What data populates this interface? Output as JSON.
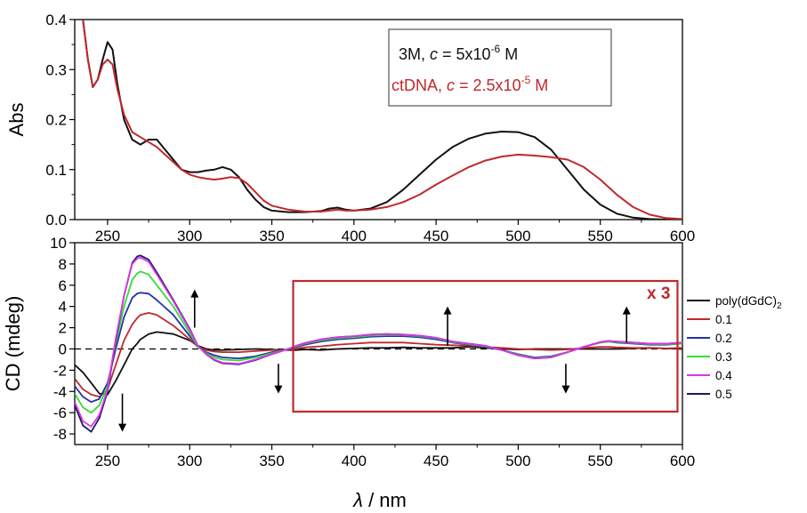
{
  "colors": {
    "black": "#111111",
    "red": "#c0282d",
    "blue": "#2233aa",
    "green": "#33dd33",
    "magenta": "#dd33ee",
    "navy": "#1a1a5e",
    "box": "#c0282d"
  },
  "chart_data": [
    {
      "type": "line",
      "id": "absorbance",
      "xlabel": "",
      "ylabel": "Abs",
      "xlim": [
        230,
        600
      ],
      "ylim": [
        0,
        0.4
      ],
      "xticks": [
        250,
        300,
        350,
        400,
        450,
        500,
        550,
        600
      ],
      "yticks": [
        0.0,
        0.1,
        0.2,
        0.3,
        0.4
      ],
      "legend": {
        "placement": "top-right",
        "entries": [
          {
            "parts": [
              "3M, ",
              "c",
              " = 5x10",
              "-6",
              " M"
            ],
            "color": "#111111"
          },
          {
            "parts": [
              "ctDNA, ",
              "c",
              " = 2.5x10",
              "-5",
              " M"
            ],
            "color": "#c0282d"
          }
        ]
      },
      "series": [
        {
          "color": "#111111",
          "x": [
            235,
            238,
            241,
            244,
            247,
            250,
            253,
            256,
            260,
            265,
            270,
            275,
            280,
            285,
            290,
            295,
            300,
            305,
            310,
            315,
            320,
            325,
            330,
            335,
            340,
            345,
            350,
            360,
            370,
            380,
            385,
            390,
            395,
            400,
            410,
            420,
            430,
            440,
            450,
            460,
            470,
            480,
            490,
            500,
            510,
            520,
            530,
            540,
            550,
            560,
            570,
            580,
            590,
            600
          ],
          "y": [
            0.4,
            0.32,
            0.265,
            0.28,
            0.32,
            0.355,
            0.34,
            0.27,
            0.2,
            0.16,
            0.15,
            0.16,
            0.16,
            0.14,
            0.12,
            0.1,
            0.095,
            0.095,
            0.098,
            0.1,
            0.105,
            0.1,
            0.085,
            0.06,
            0.04,
            0.025,
            0.018,
            0.015,
            0.015,
            0.017,
            0.022,
            0.024,
            0.02,
            0.018,
            0.022,
            0.035,
            0.06,
            0.09,
            0.12,
            0.145,
            0.162,
            0.172,
            0.176,
            0.175,
            0.165,
            0.14,
            0.1,
            0.06,
            0.03,
            0.012,
            0.004,
            0.001,
            0.0,
            0.0
          ]
        },
        {
          "color": "#c0282d",
          "x": [
            235,
            238,
            241,
            244,
            247,
            250,
            253,
            256,
            260,
            265,
            270,
            275,
            280,
            285,
            290,
            295,
            300,
            305,
            310,
            315,
            320,
            325,
            330,
            335,
            340,
            345,
            350,
            360,
            370,
            380,
            385,
            390,
            395,
            400,
            410,
            420,
            430,
            440,
            450,
            460,
            470,
            480,
            490,
            500,
            510,
            520,
            530,
            540,
            550,
            560,
            570,
            580,
            590,
            600
          ],
          "y": [
            0.4,
            0.32,
            0.265,
            0.28,
            0.31,
            0.32,
            0.31,
            0.26,
            0.21,
            0.175,
            0.165,
            0.155,
            0.145,
            0.13,
            0.115,
            0.1,
            0.09,
            0.085,
            0.082,
            0.08,
            0.082,
            0.085,
            0.083,
            0.072,
            0.055,
            0.038,
            0.028,
            0.02,
            0.016,
            0.016,
            0.018,
            0.02,
            0.018,
            0.018,
            0.02,
            0.025,
            0.035,
            0.05,
            0.07,
            0.088,
            0.105,
            0.118,
            0.126,
            0.13,
            0.128,
            0.125,
            0.12,
            0.105,
            0.08,
            0.05,
            0.025,
            0.01,
            0.003,
            0.001
          ]
        }
      ]
    },
    {
      "type": "line",
      "id": "cd",
      "xlabel_parts": [
        "λ",
        " / nm"
      ],
      "ylabel": "CD (mdeg)",
      "xlim": [
        230,
        600
      ],
      "ylim": [
        -9,
        10
      ],
      "xticks": [
        250,
        300,
        350,
        400,
        450,
        500,
        550,
        600
      ],
      "yticks": [
        -8,
        -6,
        -4,
        -2,
        0,
        2,
        4,
        6,
        8,
        10
      ],
      "zero_line": "dashed",
      "inset": {
        "label": "x 3",
        "x_from": 363,
        "x_to": 597,
        "y_from": -5.9,
        "y_to": 6.4
      },
      "legend": {
        "placement": "right",
        "entries": [
          {
            "parts": [
              "poly(dGdC)",
              "2"
            ],
            "color": "#111111"
          },
          {
            "parts": [
              "0.1"
            ],
            "color": "#c0282d"
          },
          {
            "parts": [
              "0.2"
            ],
            "color": "#2233aa"
          },
          {
            "parts": [
              "0.3"
            ],
            "color": "#33dd33"
          },
          {
            "parts": [
              "0.4"
            ],
            "color": "#dd33ee"
          },
          {
            "parts": [
              "0.5"
            ],
            "color": "#1a1a5e"
          }
        ]
      },
      "arrows": [
        {
          "x": 259,
          "y_from": -4.2,
          "y_to": -7.8
        },
        {
          "x": 303,
          "y_from": 2.0,
          "y_to": 5.6
        },
        {
          "x": 354,
          "y_from": -1.4,
          "y_to": -4.2
        },
        {
          "x": 457,
          "y_from": 0.3,
          "y_to": 4.0
        },
        {
          "x": 529,
          "y_from": -1.4,
          "y_to": -4.2
        },
        {
          "x": 566,
          "y_from": 0.6,
          "y_to": 4.0
        }
      ],
      "x": [
        230,
        235,
        240,
        245,
        250,
        255,
        260,
        265,
        268,
        270,
        275,
        280,
        290,
        300,
        305,
        310,
        315,
        320,
        330,
        340,
        350,
        360,
        365,
        370,
        380,
        390,
        400,
        410,
        420,
        430,
        440,
        450,
        460,
        470,
        480,
        490,
        500,
        510,
        520,
        530,
        540,
        550,
        555,
        560,
        570,
        580,
        590,
        600
      ],
      "series": [
        {
          "name": "poly(dGdC)2",
          "color": "#111111",
          "y": [
            -1.5,
            -2.2,
            -3.2,
            -4.2,
            -4.3,
            -3,
            -1.5,
            0,
            0.5,
            0.9,
            1.4,
            1.6,
            1.4,
            0.8,
            0.3,
            0,
            -0.1,
            -0.1,
            -0.05,
            0,
            -0.05,
            -0.1,
            -0.1,
            -0.05,
            -0.1,
            0,
            0.05,
            0.1,
            0.1,
            0.15,
            0.1,
            0.1,
            0.1,
            0.2,
            0.1,
            0,
            -0.05,
            0,
            0,
            0,
            0,
            0,
            0,
            0,
            0.05,
            0.1,
            0.05,
            0
          ]
        },
        {
          "name": "0.1",
          "color": "#c0282d",
          "y": [
            -2.8,
            -3.8,
            -4.3,
            -4.5,
            -3.8,
            -1.5,
            0.8,
            2.3,
            2.9,
            3.2,
            3.4,
            3.2,
            2.2,
            0.9,
            0.2,
            -0.1,
            -0.25,
            -0.3,
            -0.3,
            -0.2,
            -0.1,
            -0.05,
            0.05,
            0.15,
            0.25,
            0.4,
            0.5,
            0.6,
            0.6,
            0.6,
            0.5,
            0.4,
            0.35,
            0.3,
            0.2,
            0.1,
            0,
            -0.05,
            -0.1,
            -0.05,
            0.1,
            0.2,
            0.2,
            0.15,
            0.1,
            0.1,
            0.05,
            0.1
          ]
        },
        {
          "name": "0.2",
          "color": "#2233aa",
          "y": [
            -3.5,
            -4.5,
            -5,
            -4.7,
            -3.2,
            0,
            3,
            4.8,
            5.2,
            5.3,
            5.2,
            4.6,
            3.2,
            1.2,
            0.2,
            -0.3,
            -0.6,
            -0.8,
            -0.9,
            -0.7,
            -0.3,
            0,
            0.2,
            0.4,
            0.7,
            0.9,
            1,
            1.15,
            1.2,
            1.2,
            1.1,
            0.9,
            0.6,
            0.4,
            0.2,
            -0.1,
            -0.5,
            -0.8,
            -0.7,
            -0.3,
            0.2,
            0.6,
            0.7,
            0.6,
            0.5,
            0.4,
            0.4,
            0.5
          ]
        },
        {
          "name": "0.3",
          "color": "#33dd33",
          "y": [
            -4.2,
            -5.5,
            -6,
            -5.3,
            -3.5,
            0.5,
            4,
            6.5,
            7.1,
            7.3,
            7,
            6,
            4,
            1.5,
            0.2,
            -0.4,
            -0.8,
            -1,
            -1.1,
            -0.8,
            -0.4,
            0,
            0.25,
            0.5,
            0.8,
            1,
            1.1,
            1.25,
            1.3,
            1.3,
            1.2,
            1,
            0.65,
            0.45,
            0.25,
            -0.1,
            -0.55,
            -0.85,
            -0.75,
            -0.3,
            0.2,
            0.6,
            0.7,
            0.65,
            0.55,
            0.45,
            0.45,
            0.5
          ]
        },
        {
          "name": "0.4",
          "color": "#dd33ee",
          "y": [
            -5,
            -6.8,
            -7.3,
            -6.2,
            -3.8,
            1,
            5,
            8,
            8.5,
            8.6,
            8.2,
            7,
            4.5,
            1.8,
            0.3,
            -0.5,
            -1,
            -1.3,
            -1.4,
            -1,
            -0.5,
            0,
            0.3,
            0.55,
            0.9,
            1.1,
            1.2,
            1.35,
            1.4,
            1.35,
            1.25,
            1.05,
            0.7,
            0.5,
            0.3,
            -0.1,
            -0.6,
            -0.9,
            -0.8,
            -0.3,
            0.2,
            0.65,
            0.75,
            0.7,
            0.6,
            0.5,
            0.5,
            0.6
          ]
        },
        {
          "name": "0.5",
          "color": "#1a1a5e",
          "y": [
            -5.3,
            -7.2,
            -7.8,
            -6.5,
            -4,
            0.8,
            5,
            8.1,
            8.7,
            8.8,
            8.4,
            7.2,
            4.6,
            1.9,
            0.3,
            -0.5,
            -1.05,
            -1.35,
            -1.45,
            -1.05,
            -0.5,
            0,
            0.3,
            0.55,
            0.9,
            1.1,
            1.2,
            1.35,
            1.4,
            1.35,
            1.25,
            1.05,
            0.7,
            0.5,
            0.3,
            -0.1,
            -0.6,
            -0.9,
            -0.8,
            -0.3,
            0.2,
            0.65,
            0.75,
            0.7,
            0.6,
            0.5,
            0.5,
            0.6
          ]
        }
      ]
    }
  ]
}
